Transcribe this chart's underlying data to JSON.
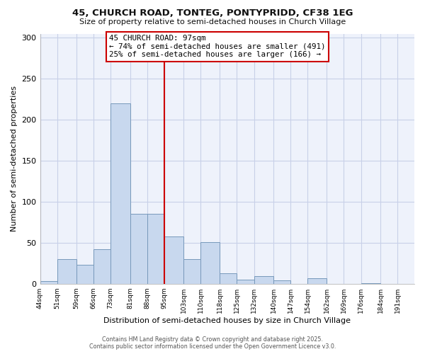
{
  "title_line1": "45, CHURCH ROAD, TONTEG, PONTYPRIDD, CF38 1EG",
  "title_line2": "Size of property relative to semi-detached houses in Church Village",
  "xlabel": "Distribution of semi-detached houses by size in Church Village",
  "ylabel": "Number of semi-detached properties",
  "bin_labels": [
    "44sqm",
    "51sqm",
    "59sqm",
    "66sqm",
    "73sqm",
    "81sqm",
    "88sqm",
    "95sqm",
    "103sqm",
    "110sqm",
    "118sqm",
    "125sqm",
    "132sqm",
    "140sqm",
    "147sqm",
    "154sqm",
    "162sqm",
    "169sqm",
    "176sqm",
    "184sqm",
    "191sqm"
  ],
  "bin_edges": [
    44,
    51,
    59,
    66,
    73,
    81,
    88,
    95,
    103,
    110,
    118,
    125,
    132,
    140,
    147,
    154,
    162,
    169,
    176,
    184,
    191
  ],
  "bar_heights": [
    3,
    30,
    23,
    42,
    220,
    85,
    85,
    58,
    30,
    51,
    13,
    5,
    9,
    4,
    0,
    7,
    0,
    0,
    1,
    0
  ],
  "bar_color": "#c8d8ee",
  "bar_edge_color": "#7799bb",
  "vline_x": 95,
  "vline_color": "#cc0000",
  "annotation_title": "45 CHURCH ROAD: 97sqm",
  "annotation_line1": "← 74% of semi-detached houses are smaller (491)",
  "annotation_line2": "25% of semi-detached houses are larger (166) →",
  "ylim": [
    0,
    305
  ],
  "yticks": [
    0,
    50,
    100,
    150,
    200,
    250,
    300
  ],
  "footer_line1": "Contains HM Land Registry data © Crown copyright and database right 2025.",
  "footer_line2": "Contains public sector information licensed under the Open Government Licence v3.0.",
  "bg_color": "#ffffff",
  "plot_bg_color": "#eef2fb",
  "grid_color": "#c8d0e8"
}
